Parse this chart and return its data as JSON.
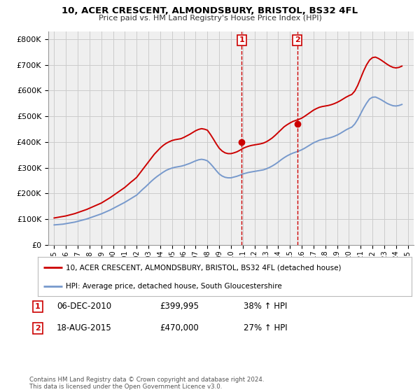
{
  "title": "10, ACER CRESCENT, ALMONDSBURY, BRISTOL, BS32 4FL",
  "subtitle": "Price paid vs. HM Land Registry's House Price Index (HPI)",
  "background_color": "#ffffff",
  "grid_color": "#cccccc",
  "plot_bg_color": "#efefef",
  "red_line_color": "#cc0000",
  "blue_line_color": "#7799cc",
  "vline_color": "#cc0000",
  "sale1_x": 2010.92,
  "sale1_y": 399995,
  "sale1_label": "1",
  "sale2_x": 2015.63,
  "sale2_y": 470000,
  "sale2_label": "2",
  "ylim_min": 0,
  "ylim_max": 830000,
  "yticks": [
    0,
    100000,
    200000,
    300000,
    400000,
    500000,
    600000,
    700000,
    800000
  ],
  "ytick_labels": [
    "£0",
    "£100K",
    "£200K",
    "£300K",
    "£400K",
    "£500K",
    "£600K",
    "£700K",
    "£800K"
  ],
  "xlim_min": 1994.5,
  "xlim_max": 2025.5,
  "xticks": [
    1995,
    1996,
    1997,
    1998,
    1999,
    2000,
    2001,
    2002,
    2003,
    2004,
    2005,
    2006,
    2007,
    2008,
    2009,
    2010,
    2011,
    2012,
    2013,
    2014,
    2015,
    2016,
    2017,
    2018,
    2019,
    2020,
    2021,
    2022,
    2023,
    2024,
    2025
  ],
  "legend_red_label": "10, ACER CRESCENT, ALMONDSBURY, BRISTOL, BS32 4FL (detached house)",
  "legend_blue_label": "HPI: Average price, detached house, South Gloucestershire",
  "note1_label": "1",
  "note1_date": "06-DEC-2010",
  "note1_price": "£399,995",
  "note1_hpi": "38% ↑ HPI",
  "note2_label": "2",
  "note2_date": "18-AUG-2015",
  "note2_price": "£470,000",
  "note2_hpi": "27% ↑ HPI",
  "footer": "Contains HM Land Registry data © Crown copyright and database right 2024.\nThis data is licensed under the Open Government Licence v3.0.",
  "red_x": [
    1995.0,
    1995.25,
    1995.5,
    1995.75,
    1996.0,
    1996.25,
    1996.5,
    1996.75,
    1997.0,
    1997.25,
    1997.5,
    1997.75,
    1998.0,
    1998.25,
    1998.5,
    1998.75,
    1999.0,
    1999.25,
    1999.5,
    1999.75,
    2000.0,
    2000.25,
    2000.5,
    2000.75,
    2001.0,
    2001.25,
    2001.5,
    2001.75,
    2002.0,
    2002.25,
    2002.5,
    2002.75,
    2003.0,
    2003.25,
    2003.5,
    2003.75,
    2004.0,
    2004.25,
    2004.5,
    2004.75,
    2005.0,
    2005.25,
    2005.5,
    2005.75,
    2006.0,
    2006.25,
    2006.5,
    2006.75,
    2007.0,
    2007.25,
    2007.5,
    2007.75,
    2008.0,
    2008.25,
    2008.5,
    2008.75,
    2009.0,
    2009.25,
    2009.5,
    2009.75,
    2010.0,
    2010.25,
    2010.5,
    2010.75,
    2011.0,
    2011.25,
    2011.5,
    2011.75,
    2012.0,
    2012.25,
    2012.5,
    2012.75,
    2013.0,
    2013.25,
    2013.5,
    2013.75,
    2014.0,
    2014.25,
    2014.5,
    2014.75,
    2015.0,
    2015.25,
    2015.5,
    2015.75,
    2016.0,
    2016.25,
    2016.5,
    2016.75,
    2017.0,
    2017.25,
    2017.5,
    2017.75,
    2018.0,
    2018.25,
    2018.5,
    2018.75,
    2019.0,
    2019.25,
    2019.5,
    2019.75,
    2020.0,
    2020.25,
    2020.5,
    2020.75,
    2021.0,
    2021.25,
    2021.5,
    2021.75,
    2022.0,
    2022.25,
    2022.5,
    2022.75,
    2023.0,
    2023.25,
    2023.5,
    2023.75,
    2024.0,
    2024.25,
    2024.5
  ],
  "red_y": [
    105000,
    107000,
    109000,
    111000,
    113000,
    116000,
    119000,
    122000,
    126000,
    130000,
    134000,
    138000,
    143000,
    148000,
    153000,
    158000,
    163000,
    170000,
    177000,
    184000,
    192000,
    200000,
    208000,
    216000,
    224000,
    234000,
    244000,
    253000,
    263000,
    278000,
    293000,
    308000,
    323000,
    338000,
    353000,
    365000,
    377000,
    387000,
    395000,
    401000,
    406000,
    409000,
    411000,
    413000,
    418000,
    424000,
    430000,
    437000,
    444000,
    449000,
    452000,
    450000,
    446000,
    430000,
    412000,
    393000,
    376000,
    365000,
    358000,
    355000,
    355000,
    358000,
    362000,
    368000,
    375000,
    380000,
    384000,
    387000,
    389000,
    391000,
    393000,
    396000,
    401000,
    408000,
    416000,
    426000,
    437000,
    448000,
    459000,
    467000,
    474000,
    480000,
    484000,
    488000,
    493000,
    500000,
    508000,
    516000,
    524000,
    530000,
    535000,
    538000,
    540000,
    542000,
    545000,
    549000,
    554000,
    560000,
    567000,
    574000,
    580000,
    585000,
    598000,
    620000,
    648000,
    676000,
    700000,
    718000,
    728000,
    730000,
    725000,
    718000,
    710000,
    702000,
    695000,
    690000,
    688000,
    690000,
    695000
  ],
  "blue_x": [
    1995.0,
    1995.25,
    1995.5,
    1995.75,
    1996.0,
    1996.25,
    1996.5,
    1996.75,
    1997.0,
    1997.25,
    1997.5,
    1997.75,
    1998.0,
    1998.25,
    1998.5,
    1998.75,
    1999.0,
    1999.25,
    1999.5,
    1999.75,
    2000.0,
    2000.25,
    2000.5,
    2000.75,
    2001.0,
    2001.25,
    2001.5,
    2001.75,
    2002.0,
    2002.25,
    2002.5,
    2002.75,
    2003.0,
    2003.25,
    2003.5,
    2003.75,
    2004.0,
    2004.25,
    2004.5,
    2004.75,
    2005.0,
    2005.25,
    2005.5,
    2005.75,
    2006.0,
    2006.25,
    2006.5,
    2006.75,
    2007.0,
    2007.25,
    2007.5,
    2007.75,
    2008.0,
    2008.25,
    2008.5,
    2008.75,
    2009.0,
    2009.25,
    2009.5,
    2009.75,
    2010.0,
    2010.25,
    2010.5,
    2010.75,
    2011.0,
    2011.25,
    2011.5,
    2011.75,
    2012.0,
    2012.25,
    2012.5,
    2012.75,
    2013.0,
    2013.25,
    2013.5,
    2013.75,
    2014.0,
    2014.25,
    2014.5,
    2014.75,
    2015.0,
    2015.25,
    2015.5,
    2015.75,
    2016.0,
    2016.25,
    2016.5,
    2016.75,
    2017.0,
    2017.25,
    2017.5,
    2017.75,
    2018.0,
    2018.25,
    2018.5,
    2018.75,
    2019.0,
    2019.25,
    2019.5,
    2019.75,
    2020.0,
    2020.25,
    2020.5,
    2020.75,
    2021.0,
    2021.25,
    2021.5,
    2021.75,
    2022.0,
    2022.25,
    2022.5,
    2022.75,
    2023.0,
    2023.25,
    2023.5,
    2023.75,
    2024.0,
    2024.25,
    2024.5
  ],
  "blue_y": [
    78000,
    79000,
    80000,
    81000,
    83000,
    85000,
    87000,
    89000,
    92000,
    95000,
    98000,
    101000,
    105000,
    109000,
    113000,
    117000,
    121000,
    126000,
    131000,
    136000,
    142000,
    148000,
    154000,
    160000,
    166000,
    173000,
    180000,
    187000,
    194000,
    205000,
    216000,
    226000,
    237000,
    248000,
    258000,
    267000,
    275000,
    283000,
    290000,
    295000,
    299000,
    302000,
    304000,
    306000,
    309000,
    313000,
    317000,
    322000,
    327000,
    331000,
    333000,
    331000,
    327000,
    316000,
    303000,
    289000,
    276000,
    268000,
    263000,
    261000,
    261000,
    264000,
    267000,
    271000,
    276000,
    279000,
    282000,
    284000,
    286000,
    288000,
    290000,
    292000,
    296000,
    301000,
    307000,
    314000,
    322000,
    331000,
    339000,
    346000,
    352000,
    357000,
    361000,
    365000,
    370000,
    376000,
    383000,
    390000,
    397000,
    402000,
    407000,
    410000,
    413000,
    415000,
    418000,
    422000,
    427000,
    433000,
    440000,
    447000,
    453000,
    458000,
    470000,
    488000,
    510000,
    532000,
    551000,
    567000,
    574000,
    575000,
    570000,
    564000,
    557000,
    550000,
    545000,
    541000,
    540000,
    542000,
    546000
  ]
}
